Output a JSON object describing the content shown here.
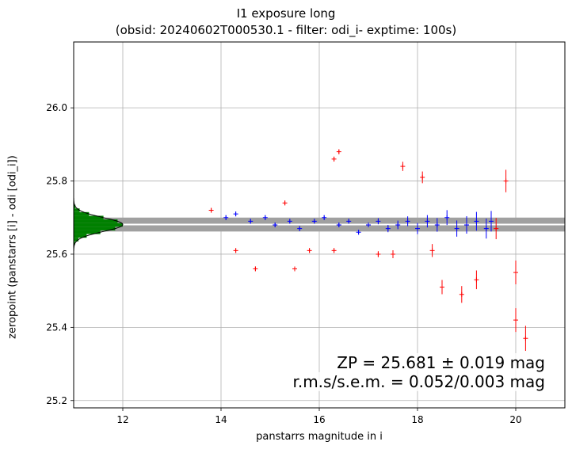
{
  "chart_data": {
    "type": "scatter",
    "title": "I1 exposure long",
    "subtitle": "(obsid: 20240602T000530.1 - filter: odi_i- exptime: 100s)",
    "xlabel": "panstarrs magnitude in i",
    "ylabel": "zeropoint (panstarrs [i] - odi [odi_i])",
    "xlim": [
      11.0,
      21.0
    ],
    "ylim": [
      25.18,
      26.18
    ],
    "xticks": [
      "12",
      "14",
      "16",
      "18",
      "20"
    ],
    "yticks": [
      "25.2",
      "25.4",
      "25.6",
      "25.8",
      "26.0"
    ],
    "grid": true,
    "zeropoint": 25.681,
    "zp_band": [
      25.662,
      25.7
    ],
    "annotations": {
      "zp": "ZP = 25.681 ± 0.019 mag",
      "rms": "r.m.s/s.e.m. = 0.052/0.003 mag"
    },
    "colors": {
      "used": "#0000ff",
      "rejected": "#ff0000",
      "histogram": "#008000",
      "band": "#a0a0a0",
      "fit": "#000000"
    },
    "series": [
      {
        "values": [
          {
            "x": 14.1,
            "y": 25.7
          },
          {
            "x": 14.3,
            "y": 25.71
          },
          {
            "x": 14.6,
            "y": 25.69
          },
          {
            "x": 14.9,
            "y": 25.7
          },
          {
            "x": 15.1,
            "y": 25.68
          },
          {
            "x": 15.4,
            "y": 25.69
          },
          {
            "x": 15.6,
            "y": 25.67
          },
          {
            "x": 15.9,
            "y": 25.69
          },
          {
            "x": 16.1,
            "y": 25.7
          },
          {
            "x": 16.4,
            "y": 25.68
          },
          {
            "x": 16.6,
            "y": 25.69
          },
          {
            "x": 16.8,
            "y": 25.66
          },
          {
            "x": 17.0,
            "y": 25.68
          },
          {
            "x": 17.2,
            "y": 25.69
          },
          {
            "x": 17.4,
            "y": 25.67
          },
          {
            "x": 17.6,
            "y": 25.68
          },
          {
            "x": 17.8,
            "y": 25.69
          },
          {
            "x": 18.0,
            "y": 25.67
          },
          {
            "x": 18.2,
            "y": 25.69
          },
          {
            "x": 18.4,
            "y": 25.68
          },
          {
            "x": 18.6,
            "y": 25.7
          },
          {
            "x": 18.8,
            "y": 25.67
          },
          {
            "x": 19.0,
            "y": 25.68
          },
          {
            "x": 19.2,
            "y": 25.69
          },
          {
            "x": 19.4,
            "y": 25.67
          },
          {
            "x": 19.5,
            "y": 25.69
          }
        ]
      },
      {
        "values": [
          {
            "x": 13.8,
            "y": 25.72
          },
          {
            "x": 14.3,
            "y": 25.61
          },
          {
            "x": 14.7,
            "y": 25.56
          },
          {
            "x": 15.3,
            "y": 25.74
          },
          {
            "x": 15.5,
            "y": 25.56
          },
          {
            "x": 15.8,
            "y": 25.61
          },
          {
            "x": 16.3,
            "y": 25.86
          },
          {
            "x": 16.4,
            "y": 25.88
          },
          {
            "x": 16.3,
            "y": 25.61
          },
          {
            "x": 17.2,
            "y": 25.6
          },
          {
            "x": 17.5,
            "y": 25.6
          },
          {
            "x": 17.7,
            "y": 25.84
          },
          {
            "x": 18.1,
            "y": 25.81
          },
          {
            "x": 18.3,
            "y": 25.61
          },
          {
            "x": 18.5,
            "y": 25.51
          },
          {
            "x": 18.9,
            "y": 25.49
          },
          {
            "x": 19.2,
            "y": 25.53
          },
          {
            "x": 19.6,
            "y": 25.67
          },
          {
            "x": 19.8,
            "y": 25.8
          },
          {
            "x": 20.0,
            "y": 25.55
          },
          {
            "x": 20.0,
            "y": 25.42
          },
          {
            "x": 20.2,
            "y": 25.37
          }
        ]
      }
    ]
  }
}
